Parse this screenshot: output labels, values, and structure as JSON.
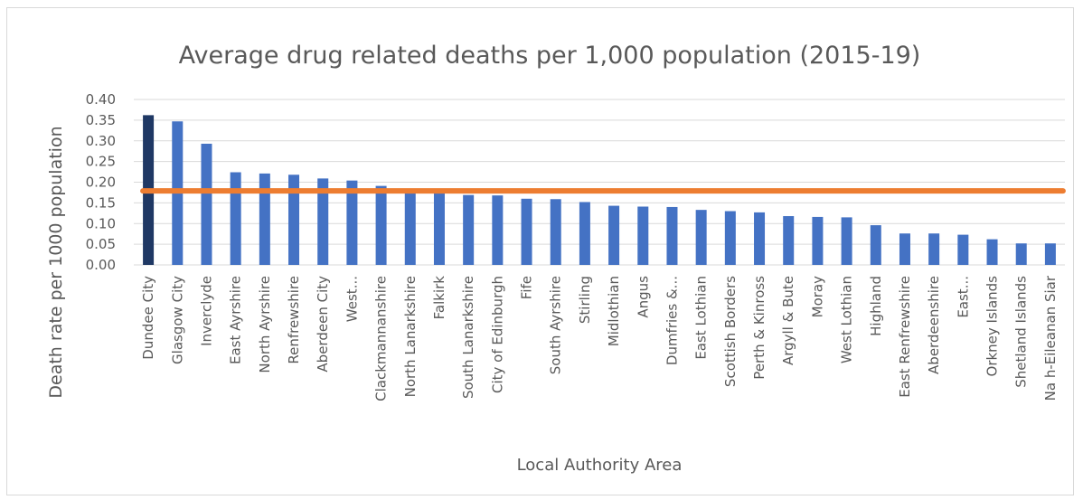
{
  "chart_data": {
    "type": "bar",
    "title": "Average drug related deaths per 1,000 population (2015-19)",
    "xlabel": "Local Authority Area",
    "ylabel": "Death rate per 1000 population",
    "ylim": [
      0,
      0.4
    ],
    "yticks": [
      "0.00",
      "0.05",
      "0.10",
      "0.15",
      "0.20",
      "0.25",
      "0.30",
      "0.35",
      "0.40"
    ],
    "grid": true,
    "categories": [
      "Dundee City",
      "Glasgow City",
      "Inverclyde",
      "East Ayrshire",
      "North Ayrshire",
      "Renfrewshire",
      "Aberdeen City",
      "West...",
      "Clackmannanshire",
      "North Lanarkshire",
      "Falkirk",
      "South Lanarkshire",
      "City of Edinburgh",
      "Fife",
      "South Ayrshire",
      "Stirling",
      "Midlothian",
      "Angus",
      "Dumfries &...",
      "East Lothian",
      "Scottish Borders",
      "Perth & Kinross",
      "Argyll & Bute",
      "Moray",
      "West Lothian",
      "Highland",
      "East Renfrewshire",
      "Aberdeenshire",
      "East...",
      "Orkney Islands",
      "Shetland Islands",
      "Na h-Eileanan Siar"
    ],
    "values": [
      0.362,
      0.347,
      0.293,
      0.224,
      0.221,
      0.218,
      0.209,
      0.204,
      0.191,
      0.18,
      0.178,
      0.169,
      0.168,
      0.16,
      0.159,
      0.152,
      0.143,
      0.141,
      0.14,
      0.133,
      0.13,
      0.127,
      0.118,
      0.116,
      0.115,
      0.096,
      0.076,
      0.076,
      0.073,
      0.062,
      0.052,
      0.052
    ],
    "highlight_index": 0,
    "reference_line": 0.179,
    "colors": {
      "bar": "#4472c4",
      "highlight": "#1f3864",
      "line": "#ed7d31",
      "grid": "#d9d9d9",
      "text": "#595959"
    }
  }
}
